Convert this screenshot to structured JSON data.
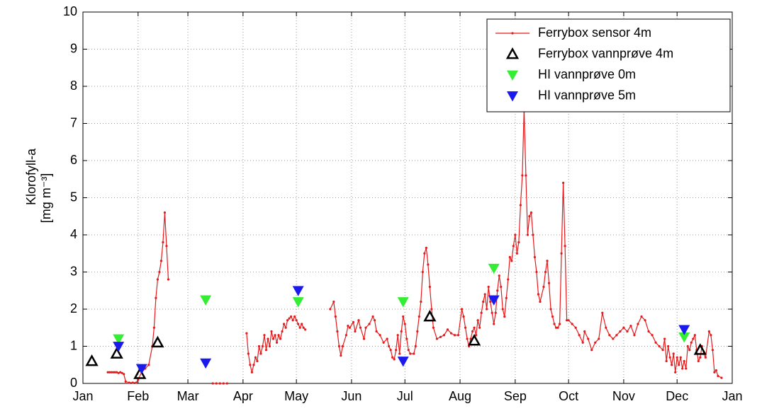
{
  "chart_data": {
    "type": "line",
    "ylabel_lines": [
      "Klorofyll-a",
      "[mg m⁻³]"
    ],
    "xlim": [
      0,
      365
    ],
    "xticks": [
      {
        "value": 0,
        "label": "Jan"
      },
      {
        "value": 31,
        "label": "Feb"
      },
      {
        "value": 59,
        "label": "Mar"
      },
      {
        "value": 90,
        "label": "Apr"
      },
      {
        "value": 120,
        "label": "May"
      },
      {
        "value": 151,
        "label": "Jun"
      },
      {
        "value": 181,
        "label": "Jul"
      },
      {
        "value": 212,
        "label": "Aug"
      },
      {
        "value": 243,
        "label": "Sep"
      },
      {
        "value": 273,
        "label": "Oct"
      },
      {
        "value": 304,
        "label": "Nov"
      },
      {
        "value": 334,
        "label": "Dec"
      },
      {
        "value": 365,
        "label": "Jan"
      }
    ],
    "ylim": [
      0,
      10
    ],
    "yticks": [
      0,
      1,
      2,
      3,
      4,
      5,
      6,
      7,
      8,
      9,
      10
    ],
    "grid": true,
    "legend": "upper right",
    "series": [
      {
        "name": "Ferrybox sensor 4m",
        "color": "#e41a1c",
        "style": "line",
        "x": [
          14,
          15,
          16,
          17,
          18,
          19,
          20,
          21,
          22,
          23,
          24,
          26,
          28,
          30,
          31,
          33,
          35,
          37,
          39,
          40,
          41,
          42,
          43,
          44,
          45,
          46,
          47,
          48,
          null,
          73,
          75,
          77,
          79,
          81,
          null,
          92,
          93,
          94,
          95,
          96,
          97,
          98,
          99,
          100,
          101,
          102,
          103,
          104,
          105,
          106,
          107,
          108,
          109,
          110,
          111,
          112,
          113,
          114,
          115,
          116,
          117,
          118,
          119,
          120,
          121,
          122,
          123,
          124,
          125,
          null,
          139,
          141,
          142,
          143,
          144,
          145,
          146,
          148,
          149,
          150,
          152,
          153,
          155,
          156,
          158,
          159,
          161,
          163,
          164,
          165,
          167,
          169,
          171,
          172,
          173,
          174,
          175,
          176,
          177,
          178,
          179,
          180,
          181,
          182,
          183,
          184,
          186,
          187,
          188,
          189,
          190,
          191,
          192,
          193,
          194,
          195,
          196,
          197,
          199,
          201,
          203,
          205,
          207,
          209,
          211,
          213,
          214,
          215,
          216,
          217,
          218,
          219,
          220,
          221,
          222,
          223,
          224,
          225,
          226,
          227,
          228,
          229,
          230,
          231,
          232,
          233,
          234,
          235,
          236,
          237,
          238,
          239,
          240,
          241,
          242,
          243,
          244,
          245,
          246,
          247,
          248,
          249,
          250,
          251,
          252,
          253,
          254,
          255,
          256,
          257,
          259,
          260,
          261,
          262,
          263,
          264,
          265,
          266,
          267,
          268,
          269,
          270,
          271,
          272,
          273,
          275,
          277,
          279,
          281,
          282,
          284,
          286,
          288,
          290,
          292,
          294,
          296,
          298,
          300,
          302,
          304,
          306,
          308,
          310,
          312,
          314,
          316,
          318,
          320,
          322,
          324,
          326,
          327,
          328,
          329,
          330,
          331,
          332,
          333,
          334,
          335,
          336,
          337,
          338,
          339,
          340,
          341,
          342,
          343,
          344,
          345,
          346,
          347,
          348,
          349,
          350,
          352,
          353,
          354,
          355,
          356,
          357,
          359
        ],
        "values": [
          0.3,
          0.3,
          0.3,
          0.3,
          0.3,
          0.3,
          0.28,
          0.3,
          0.28,
          0.25,
          0.05,
          0.02,
          0.02,
          0.02,
          0.1,
          0.3,
          0.4,
          0.5,
          1.0,
          1.5,
          2.3,
          2.8,
          3.0,
          3.3,
          3.8,
          4.6,
          3.7,
          2.8,
          null,
          0,
          0,
          0,
          0,
          0,
          null,
          1.35,
          0.8,
          0.5,
          0.3,
          0.5,
          0.7,
          0.6,
          1.0,
          0.8,
          1.0,
          1.3,
          0.9,
          1.2,
          1.0,
          1.4,
          1.2,
          1.3,
          1.1,
          1.3,
          1.2,
          1.4,
          1.6,
          1.5,
          1.7,
          1.75,
          1.8,
          1.7,
          1.8,
          1.7,
          1.6,
          1.5,
          1.6,
          1.5,
          1.45,
          null,
          2.0,
          2.2,
          1.8,
          1.4,
          1.0,
          0.75,
          1.0,
          1.3,
          1.55,
          1.5,
          1.65,
          1.4,
          1.7,
          1.5,
          1.2,
          1.5,
          1.6,
          1.8,
          1.7,
          1.4,
          1.3,
          1.1,
          1.2,
          1.0,
          0.9,
          0.7,
          0.65,
          0.9,
          1.3,
          0.8,
          1.4,
          1.8,
          1.6,
          1.2,
          0.9,
          0.8,
          0.8,
          1.0,
          1.4,
          1.8,
          2.2,
          3.0,
          3.5,
          3.65,
          3.2,
          2.6,
          2.0,
          1.5,
          1.2,
          1.25,
          1.3,
          1.45,
          1.35,
          1.3,
          1.3,
          2.0,
          1.8,
          1.5,
          1.2,
          1.0,
          1.2,
          1.4,
          1.5,
          1.3,
          1.7,
          1.5,
          1.9,
          2.2,
          2.4,
          2.0,
          2.6,
          2.2,
          1.9,
          1.6,
          1.9,
          2.5,
          2.9,
          2.6,
          2.0,
          1.8,
          2.3,
          2.8,
          3.4,
          3.3,
          3.7,
          4.0,
          3.5,
          3.8,
          4.8,
          5.6,
          7.4,
          5.6,
          4.0,
          4.5,
          4.6,
          4.0,
          3.4,
          3.0,
          2.4,
          2.2,
          2.6,
          3.0,
          3.3,
          2.7,
          2.0,
          1.8,
          1.6,
          1.5,
          1.5,
          1.6,
          3.5,
          5.4,
          3.7,
          1.7,
          1.7,
          1.6,
          1.5,
          1.3,
          1.1,
          1.4,
          1.2,
          0.9,
          1.1,
          1.2,
          1.9,
          1.5,
          1.3,
          1.2,
          1.3,
          1.4,
          1.5,
          1.4,
          1.55,
          1.3,
          1.6,
          1.8,
          1.7,
          1.4,
          1.3,
          1.1,
          1.0,
          0.9,
          1.2,
          0.6,
          1.0,
          0.7,
          0.5,
          0.8,
          0.3,
          0.7,
          0.5,
          0.7,
          0.4,
          0.6,
          0.4,
          1.0,
          0.9,
          1.1,
          1.2,
          1.3,
          0.9,
          0.6,
          0.7,
          1.0,
          0.8,
          0.7,
          1.4,
          1.3,
          0.9,
          0.3,
          0.35,
          0.2,
          0.15
        ]
      },
      {
        "name": "Ferrybox vannprøve 4m",
        "color": "#000000",
        "style": "triangle-up",
        "x": [
          5,
          19,
          32,
          42,
          195,
          220,
          347
        ],
        "values": [
          0.6,
          0.8,
          0.25,
          1.1,
          1.8,
          1.15,
          0.9
        ]
      },
      {
        "name": "HI vannprøve 0m",
        "color": "#33ee33",
        "style": "triangle-down",
        "x": [
          20,
          69,
          121,
          180,
          231,
          338
        ],
        "values": [
          1.2,
          2.25,
          2.2,
          2.2,
          3.1,
          1.25
        ]
      },
      {
        "name": "HI vannprøve 5m",
        "color": "#1a1aee",
        "style": "triangle-down",
        "x": [
          20,
          33,
          69,
          121,
          180,
          231,
          338
        ],
        "values": [
          1.0,
          0.4,
          0.55,
          2.5,
          0.6,
          2.25,
          1.45
        ]
      }
    ]
  }
}
